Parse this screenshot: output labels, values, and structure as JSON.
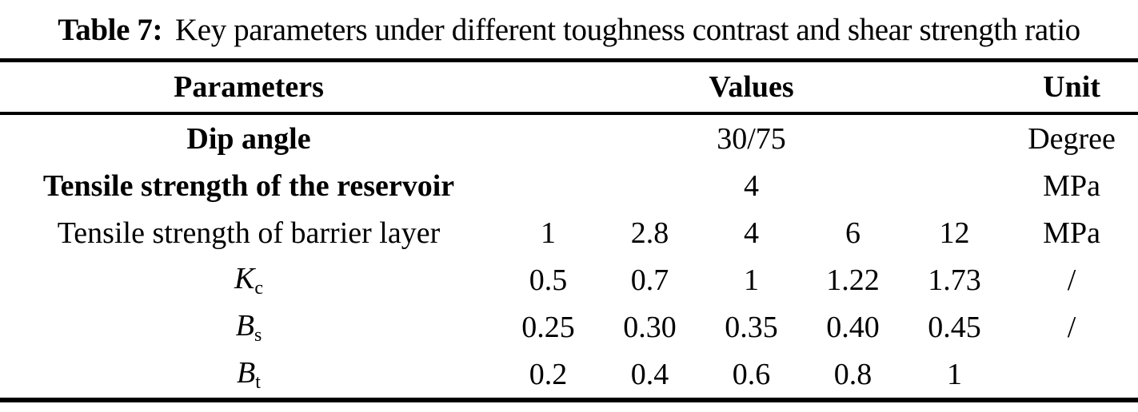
{
  "title": {
    "label": "Table 7:",
    "text": "Key parameters under different toughness contrast and shear strength ratio"
  },
  "table": {
    "headers": {
      "parameters": "Parameters",
      "values": "Values",
      "unit": "Unit"
    },
    "rows": [
      {
        "param": "Dip angle",
        "value": "30/75",
        "unit": "Degree"
      },
      {
        "param": "Tensile strength of the reservoir",
        "value": "4",
        "unit": "MPa"
      },
      {
        "param": "Tensile strength of barrier layer",
        "values": [
          "1",
          "2.8",
          "4",
          "6",
          "12"
        ],
        "unit": "MPa"
      },
      {
        "param_base": "K",
        "param_sub": "c",
        "values": [
          "0.5",
          "0.7",
          "1",
          "1.22",
          "1.73"
        ],
        "unit": "/"
      },
      {
        "param_base": "B",
        "param_sub": "s",
        "values": [
          "0.25",
          "0.30",
          "0.35",
          "0.40",
          "0.45"
        ],
        "unit": "/"
      },
      {
        "param_base": "B",
        "param_sub": "t",
        "values": [
          "0.2",
          "0.4",
          "0.6",
          "0.8",
          "1"
        ],
        "unit": ""
      }
    ]
  },
  "colors": {
    "text": "#000000",
    "background": "#ffffff",
    "rule": "#000000"
  }
}
